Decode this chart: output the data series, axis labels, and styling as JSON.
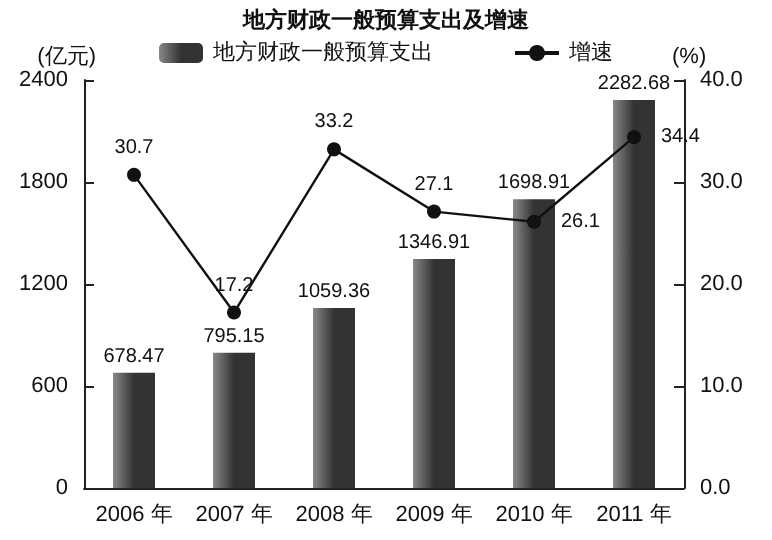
{
  "chart_data": {
    "type": "bar",
    "title": "地方财政一般预算支出及增速",
    "ylabel": "(亿元)",
    "y2label": "(%)",
    "categories": [
      "2006 年",
      "2007 年",
      "2008 年",
      "2009 年",
      "2010 年",
      "2011 年"
    ],
    "series": [
      {
        "name": "地方财政一般预算支出",
        "color": "#333333",
        "values": [
          678.47,
          795.15,
          1059.36,
          1346.91,
          1698.91,
          2282.68
        ]
      },
      {
        "name": "增速",
        "type": "line",
        "axis": "y2",
        "color": "#111111",
        "values": [
          30.7,
          17.2,
          33.2,
          27.1,
          26.1,
          34.4
        ]
      }
    ],
    "ylim": [
      0,
      2400
    ],
    "yticks": [
      0,
      600,
      1200,
      1800,
      2400
    ],
    "y2lim": [
      0,
      40
    ],
    "y2ticks": [
      {
        "value": 0,
        "label": "0.0"
      },
      {
        "value": 10,
        "label": "10.0"
      },
      {
        "value": 20,
        "label": "20.0"
      },
      {
        "value": 30,
        "label": "30.0"
      },
      {
        "value": 40,
        "label": "40.0"
      }
    ],
    "data_labels": true,
    "legend": "top",
    "grid": false,
    "marker": "circle",
    "line_style": "solid"
  }
}
